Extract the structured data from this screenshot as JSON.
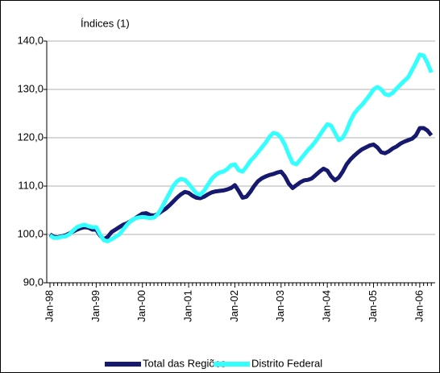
{
  "chart_data": {
    "type": "line",
    "y_label": "Índices (1)",
    "categories": [
      "Jan-98",
      null,
      null,
      null,
      null,
      null,
      null,
      null,
      null,
      null,
      null,
      null,
      "Jan-99",
      null,
      null,
      null,
      null,
      null,
      null,
      null,
      null,
      null,
      null,
      null,
      "Jan-00",
      null,
      null,
      null,
      null,
      null,
      null,
      null,
      null,
      null,
      null,
      null,
      "Jan-01",
      null,
      null,
      null,
      null,
      null,
      null,
      null,
      null,
      null,
      null,
      null,
      "Jan-02",
      null,
      null,
      null,
      null,
      null,
      null,
      null,
      null,
      null,
      null,
      null,
      "Jan-03",
      null,
      null,
      null,
      null,
      null,
      null,
      null,
      null,
      null,
      null,
      null,
      "Jan-04",
      null,
      null,
      null,
      null,
      null,
      null,
      null,
      null,
      null,
      null,
      null,
      "Jan-05",
      null,
      null,
      null,
      null,
      null,
      null,
      null,
      null,
      null,
      null,
      null,
      "Jan-06",
      null,
      null,
      null
    ],
    "series": [
      {
        "name": "Total das Regiões",
        "color": "#16196e",
        "values": [
          100,
          99.5,
          99.4,
          99.6,
          99.8,
          100.2,
          100.6,
          101,
          101.3,
          101.5,
          101.4,
          101,
          101,
          99.8,
          99,
          99.5,
          100.5,
          101,
          101.5,
          102,
          102.3,
          102.8,
          103.3,
          103.8,
          104.3,
          104.4,
          104,
          103.9,
          104.2,
          104.8,
          105.3,
          106,
          106.8,
          107.6,
          108.3,
          108.8,
          108.6,
          108,
          107.6,
          107.5,
          107.8,
          108.3,
          108.7,
          108.9,
          109,
          109.1,
          109.3,
          109.6,
          110.2,
          109,
          107.6,
          107.8,
          108.8,
          110,
          111,
          111.6,
          112,
          112.3,
          112.5,
          112.8,
          113,
          112,
          110.5,
          109.6,
          110.2,
          110.8,
          111.2,
          111.3,
          111.6,
          112.3,
          113,
          113.6,
          113.2,
          112,
          111.2,
          111.8,
          113,
          114.5,
          115.5,
          116.3,
          117,
          117.6,
          118,
          118.4,
          118.6,
          118,
          117,
          116.8,
          117.2,
          117.8,
          118.2,
          118.8,
          119.2,
          119.5,
          119.8,
          120.5,
          122,
          122,
          121.5,
          120.5
        ]
      },
      {
        "name": "Distrito Federal",
        "color": "#33ffff",
        "values": [
          99.8,
          99.3,
          99.3,
          99.5,
          99.6,
          100,
          100.8,
          101.5,
          101.8,
          102,
          101.7,
          101.5,
          101.5,
          100,
          98.8,
          98.6,
          99,
          99.5,
          100,
          101,
          102,
          102.8,
          103.3,
          103.5,
          103.6,
          103.5,
          103.4,
          103.5,
          104.2,
          105.5,
          107,
          108.5,
          110,
          111,
          111.5,
          111.3,
          110.5,
          109.5,
          108.5,
          108.2,
          109,
          110.3,
          111.5,
          112.3,
          112.8,
          113,
          113.5,
          114.3,
          114.5,
          113.3,
          113,
          114,
          115.2,
          116,
          117,
          118,
          119,
          120.2,
          121,
          120.8,
          120,
          118.5,
          116.5,
          114.8,
          114.5,
          115.5,
          116.5,
          117.5,
          118.3,
          119.3,
          120.5,
          121.7,
          122.8,
          122.5,
          121,
          119.5,
          120,
          121.5,
          123.5,
          125,
          126,
          126.8,
          127.8,
          128.8,
          130,
          130.5,
          130,
          129,
          128.8,
          129.3,
          130.2,
          131,
          131.8,
          132.5,
          134,
          135.5,
          137.2,
          137,
          135.5,
          133.5
        ]
      }
    ],
    "ylim": [
      90,
      140
    ],
    "yticks": [
      {
        "value": 90,
        "label": "90,0"
      },
      {
        "value": 100,
        "label": "100,0"
      },
      {
        "value": 110,
        "label": "110,0"
      },
      {
        "value": 120,
        "label": "120,0"
      },
      {
        "value": 130,
        "label": "130,0"
      },
      {
        "value": 140,
        "label": "140,0"
      }
    ],
    "grid": true,
    "legend": "bottom"
  }
}
